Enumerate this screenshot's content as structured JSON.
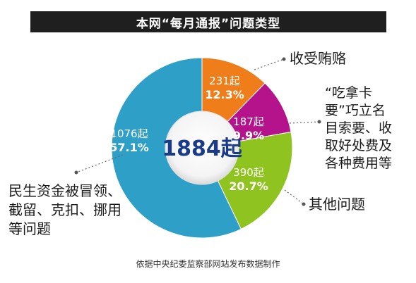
{
  "header": {
    "title": "本网“每月通报”问题类型"
  },
  "chart_data": {
    "type": "pie",
    "title": "本网“每月通报”问题类型",
    "total_label": "1884起",
    "total": 1884,
    "slices": [
      {
        "name": "收受贿赂",
        "count_label": "231起",
        "percent_label": "12.3%",
        "value": 231,
        "percent": 12.3,
        "color": "#ef7d1a"
      },
      {
        "name": "“吃拿卡要”巧立名目索要、收取好处费及各种费用等",
        "count_label": "187起",
        "percent_label": "9.9%",
        "value": 187,
        "percent": 9.9,
        "color": "#b5138c"
      },
      {
        "name": "其他问题",
        "count_label": "390起",
        "percent_label": "20.7%",
        "value": 390,
        "percent": 20.7,
        "color": "#8fc31f"
      },
      {
        "name": "民生资金被冒领、截留、克扣、挪用等问题",
        "count_label": "1076起",
        "percent_label": "57.1%",
        "value": 1076,
        "percent": 57.1,
        "color": "#2e9fc7"
      }
    ]
  },
  "callouts": {
    "bribery": [
      "收受贿赂"
    ],
    "extortion": [
      "“吃拿卡",
      "要”巧立名",
      "目索要、收",
      "取好处费及",
      "各种费用等"
    ],
    "other": [
      "其他问题"
    ],
    "livelihood": [
      "民生资金被冒领、",
      "截留、克扣、挪用",
      "等问题"
    ]
  },
  "footer": {
    "source": "依据中央纪委监察部网站发布数据制作"
  }
}
